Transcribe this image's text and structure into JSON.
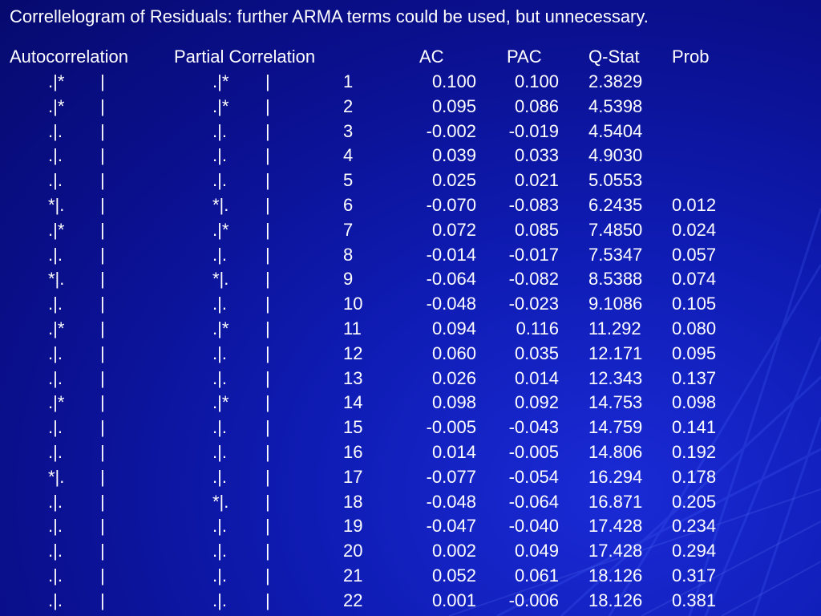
{
  "title": "Correllelogram of Residuals: further ARMA terms could be used, but unnecessary.",
  "headers": {
    "autocorrelation": "Autocorrelation",
    "partial_correlation": "Partial Correlation",
    "ac": "AC",
    "pac": "PAC",
    "qstat": "Q-Stat",
    "prob": "Prob"
  },
  "separator": "|",
  "rows": [
    {
      "ac_bar": ".|*",
      "pac_bar": ".|*",
      "lag": "1",
      "ac": "0.100",
      "pac": "0.100",
      "q": "2.3829",
      "prob": ""
    },
    {
      "ac_bar": ".|*",
      "pac_bar": ".|*",
      "lag": "2",
      "ac": "0.095",
      "pac": "0.086",
      "q": "4.5398",
      "prob": ""
    },
    {
      "ac_bar": ".|.",
      "pac_bar": ".|.",
      "lag": "3",
      "ac": "-0.002",
      "pac": "-0.019",
      "q": "4.5404",
      "prob": ""
    },
    {
      "ac_bar": ".|.",
      "pac_bar": ".|.",
      "lag": "4",
      "ac": "0.039",
      "pac": "0.033",
      "q": "4.9030",
      "prob": ""
    },
    {
      "ac_bar": ".|.",
      "pac_bar": ".|.",
      "lag": "5",
      "ac": "0.025",
      "pac": "0.021",
      "q": "5.0553",
      "prob": ""
    },
    {
      "ac_bar": "*|.",
      "pac_bar": "*|.",
      "lag": "6",
      "ac": "-0.070",
      "pac": "-0.083",
      "q": "6.2435",
      "prob": "0.012"
    },
    {
      "ac_bar": ".|*",
      "pac_bar": ".|*",
      "lag": "7",
      "ac": "0.072",
      "pac": "0.085",
      "q": "7.4850",
      "prob": "0.024"
    },
    {
      "ac_bar": ".|.",
      "pac_bar": ".|.",
      "lag": "8",
      "ac": "-0.014",
      "pac": "-0.017",
      "q": "7.5347",
      "prob": "0.057"
    },
    {
      "ac_bar": "*|.",
      "pac_bar": "*|.",
      "lag": "9",
      "ac": "-0.064",
      "pac": "-0.082",
      "q": "8.5388",
      "prob": "0.074"
    },
    {
      "ac_bar": ".|.",
      "pac_bar": ".|.",
      "lag": "10",
      "ac": "-0.048",
      "pac": "-0.023",
      "q": "9.1086",
      "prob": "0.105"
    },
    {
      "ac_bar": ".|*",
      "pac_bar": ".|*",
      "lag": "11",
      "ac": "0.094",
      "pac": "0.116",
      "q": "11.292",
      "prob": "0.080"
    },
    {
      "ac_bar": ".|.",
      "pac_bar": ".|.",
      "lag": "12",
      "ac": "0.060",
      "pac": "0.035",
      "q": "12.171",
      "prob": "0.095"
    },
    {
      "ac_bar": ".|.",
      "pac_bar": ".|.",
      "lag": "13",
      "ac": "0.026",
      "pac": "0.014",
      "q": "12.343",
      "prob": "0.137"
    },
    {
      "ac_bar": ".|*",
      "pac_bar": ".|*",
      "lag": "14",
      "ac": "0.098",
      "pac": "0.092",
      "q": "14.753",
      "prob": "0.098"
    },
    {
      "ac_bar": ".|.",
      "pac_bar": ".|.",
      "lag": "15",
      "ac": "-0.005",
      "pac": "-0.043",
      "q": "14.759",
      "prob": "0.141"
    },
    {
      "ac_bar": ".|.",
      "pac_bar": ".|.",
      "lag": "16",
      "ac": "0.014",
      "pac": "-0.005",
      "q": "14.806",
      "prob": "0.192"
    },
    {
      "ac_bar": "*|.",
      "pac_bar": ".|.",
      "lag": "17",
      "ac": "-0.077",
      "pac": "-0.054",
      "q": "16.294",
      "prob": "0.178"
    },
    {
      "ac_bar": ".|.",
      "pac_bar": "*|.",
      "lag": "18",
      "ac": "-0.048",
      "pac": "-0.064",
      "q": "16.871",
      "prob": "0.205"
    },
    {
      "ac_bar": ".|.",
      "pac_bar": ".|.",
      "lag": "19",
      "ac": "-0.047",
      "pac": "-0.040",
      "q": "17.428",
      "prob": "0.234"
    },
    {
      "ac_bar": ".|.",
      "pac_bar": ".|.",
      "lag": "20",
      "ac": "0.002",
      "pac": "0.049",
      "q": "17.428",
      "prob": "0.294"
    },
    {
      "ac_bar": ".|.",
      "pac_bar": ".|.",
      "lag": "21",
      "ac": "0.052",
      "pac": "0.061",
      "q": "18.126",
      "prob": "0.317"
    },
    {
      "ac_bar": ".|.",
      "pac_bar": ".|.",
      "lag": "22",
      "ac": "0.001",
      "pac": "-0.006",
      "q": "18.126",
      "prob": "0.381"
    }
  ],
  "colors": {
    "background": "#0a0f8c",
    "text": "#ffffff"
  }
}
